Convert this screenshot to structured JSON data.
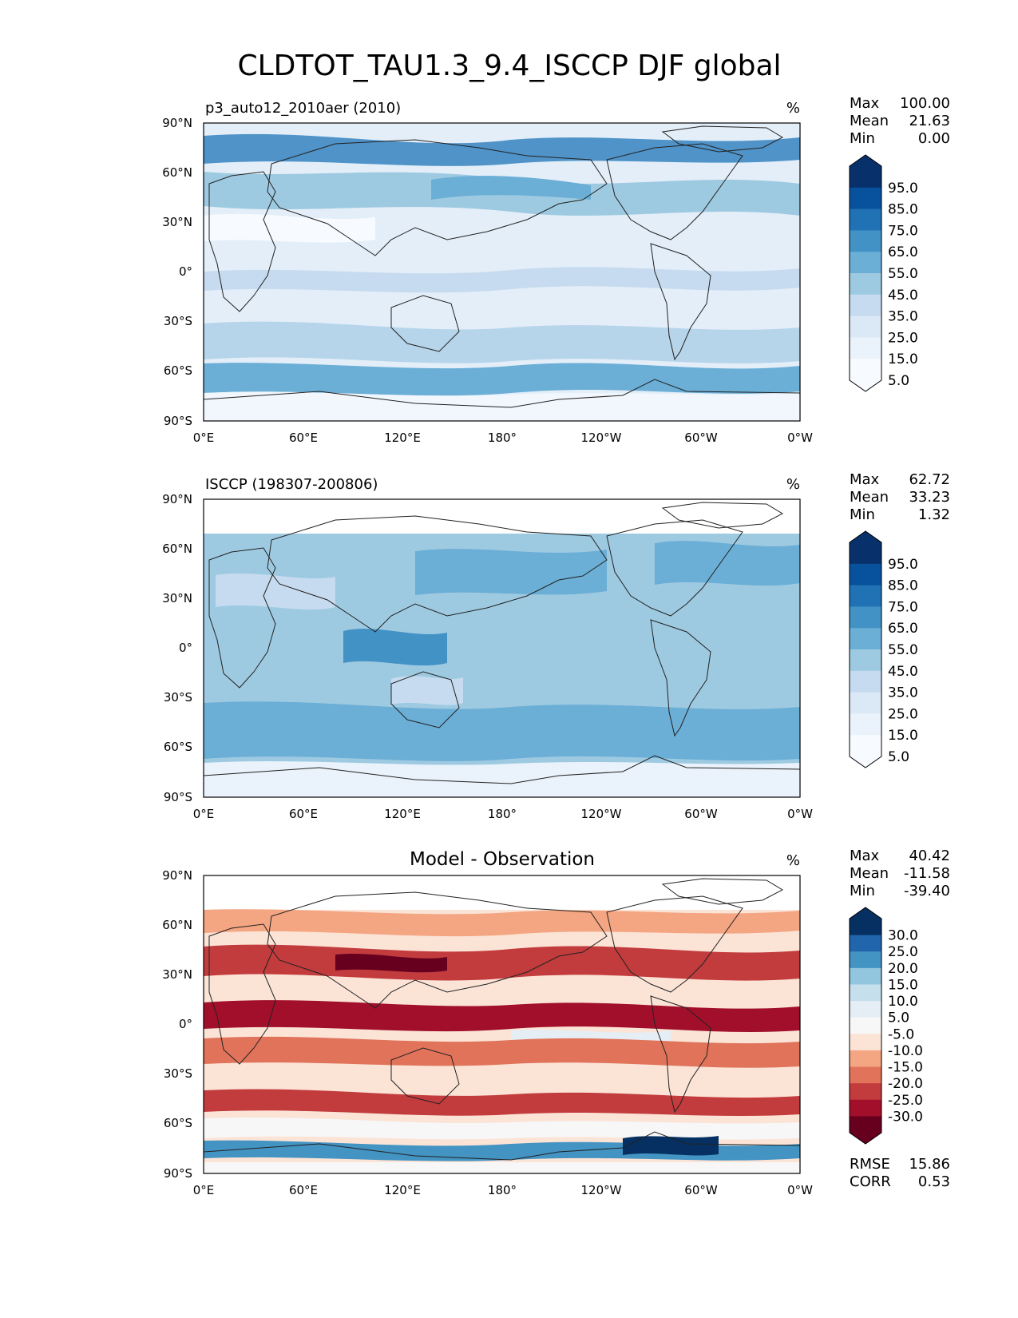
{
  "title": "CLDTOT_TAU1.3_9.4_ISCCP DJF global",
  "chart_data": [
    {
      "type": "heatmap",
      "panel": "test",
      "title": "p3_auto12_2010aer (2010)",
      "units": "%",
      "stats": [
        {
          "label": "Max",
          "value": "100.00"
        },
        {
          "label": "Mean",
          "value": "21.63"
        },
        {
          "label": "Min",
          "value": "0.00"
        }
      ],
      "xlim": [
        0,
        360
      ],
      "ylim": [
        -90,
        90
      ],
      "x_ticks": [
        "0°E",
        "60°E",
        "120°E",
        "180°",
        "120°W",
        "60°W",
        "0°W"
      ],
      "y_ticks": [
        "90°N",
        "60°N",
        "30°N",
        "0°",
        "30°S",
        "60°S",
        "90°S"
      ],
      "colorbar": {
        "levels": [
          "95.0",
          "85.0",
          "75.0",
          "65.0",
          "55.0",
          "45.0",
          "35.0",
          "25.0",
          "15.0",
          "5.0"
        ],
        "colors": [
          "#08306b",
          "#08519c",
          "#2171b5",
          "#4292c6",
          "#6baed6",
          "#9ecae1",
          "#c6dbef",
          "#dbe9f6",
          "#eaf2fb",
          "#f7fbff"
        ],
        "extend": "both"
      },
      "mean_value": 21.63
    },
    {
      "type": "heatmap",
      "panel": "reference",
      "title": "ISCCP (198307-200806)",
      "units": "%",
      "stats": [
        {
          "label": "Max",
          "value": "62.72"
        },
        {
          "label": "Mean",
          "value": "33.23"
        },
        {
          "label": "Min",
          "value": "1.32"
        }
      ],
      "xlim": [
        0,
        360
      ],
      "ylim": [
        -90,
        90
      ],
      "x_ticks": [
        "0°E",
        "60°E",
        "120°E",
        "180°",
        "120°W",
        "60°W",
        "0°W"
      ],
      "y_ticks": [
        "90°N",
        "60°N",
        "30°N",
        "0°",
        "30°S",
        "60°S",
        "90°S"
      ],
      "colorbar": {
        "levels": [
          "95.0",
          "85.0",
          "75.0",
          "65.0",
          "55.0",
          "45.0",
          "35.0",
          "25.0",
          "15.0",
          "5.0"
        ],
        "colors": [
          "#08306b",
          "#08519c",
          "#2171b5",
          "#4292c6",
          "#6baed6",
          "#9ecae1",
          "#c6dbef",
          "#dbe9f6",
          "#eaf2fb",
          "#f7fbff"
        ],
        "extend": "both"
      },
      "mean_value": 33.23
    },
    {
      "type": "heatmap",
      "panel": "difference",
      "title": "Model - Observation",
      "units": "%",
      "stats": [
        {
          "label": "Max",
          "value": "40.42"
        },
        {
          "label": "Mean",
          "value": "-11.58"
        },
        {
          "label": "Min",
          "value": "-39.40"
        }
      ],
      "metrics": [
        {
          "label": "RMSE",
          "value": "15.86"
        },
        {
          "label": "CORR",
          "value": "0.53"
        }
      ],
      "xlim": [
        0,
        360
      ],
      "ylim": [
        -90,
        90
      ],
      "x_ticks": [
        "0°E",
        "60°E",
        "120°E",
        "180°",
        "120°W",
        "60°W",
        "0°W"
      ],
      "y_ticks": [
        "90°N",
        "60°N",
        "30°N",
        "0°",
        "30°S",
        "60°S",
        "90°S"
      ],
      "colorbar": {
        "levels": [
          "30.0",
          "25.0",
          "20.0",
          "15.0",
          "10.0",
          "5.0",
          "-5.0",
          "-10.0",
          "-15.0",
          "-20.0",
          "-25.0",
          "-30.0"
        ],
        "colors": [
          "#053061",
          "#2166ac",
          "#4393c3",
          "#92c5de",
          "#c5dfec",
          "#e4eef4",
          "#f7f7f7",
          "#fbe3d6",
          "#f4a582",
          "#e0735a",
          "#c23b3d",
          "#a10f2a",
          "#67001f"
        ],
        "extend": "both"
      },
      "mean_value": -11.58
    }
  ]
}
